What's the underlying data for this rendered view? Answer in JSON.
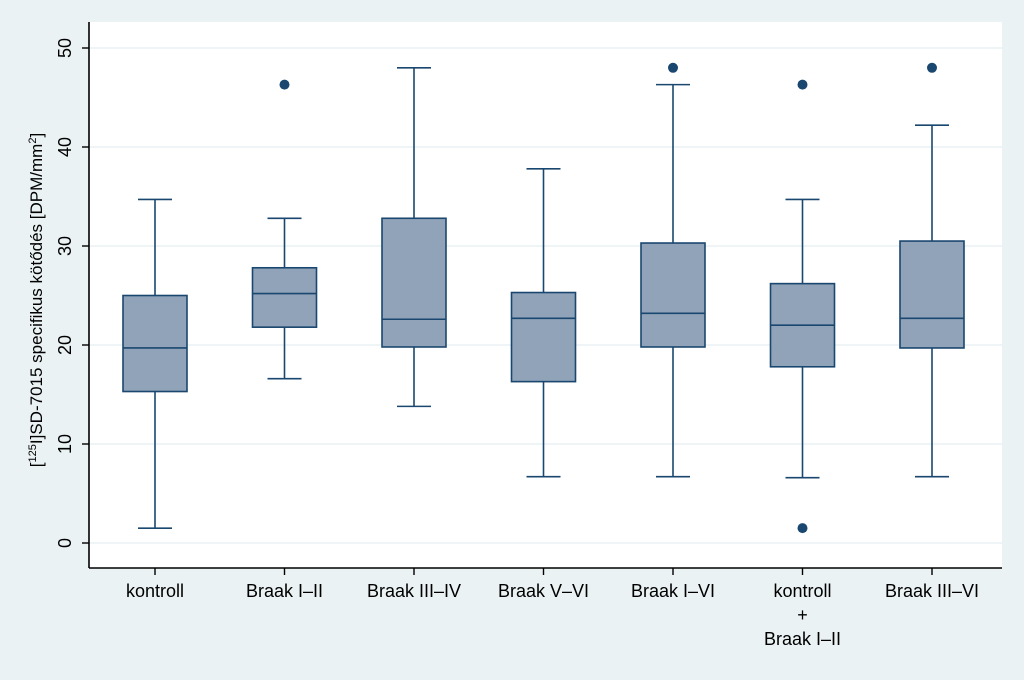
{
  "chart_data": {
    "type": "box",
    "title": "",
    "ylabel_parts": {
      "bracket_open": "[",
      "isotope": "125",
      "label_main": "I]SD-7015 specifikus kötődés [DPM/mm",
      "exponent": "2",
      "bracket_close": "]"
    },
    "ylim": [
      0,
      50
    ],
    "yticks": [
      0,
      10,
      20,
      30,
      40,
      50
    ],
    "grid": true,
    "categories": [
      [
        "kontroll"
      ],
      [
        "Braak I–II"
      ],
      [
        "Braak III–IV"
      ],
      [
        "Braak V–VI"
      ],
      [
        "Braak I–VI"
      ],
      [
        "kontroll",
        "+",
        "Braak I–II"
      ],
      [
        "Braak III–VI"
      ]
    ],
    "boxes": [
      {
        "whisker_low": 1.5,
        "q1": 15.3,
        "median": 19.7,
        "q3": 25.0,
        "whisker_high": 34.7,
        "outliers": []
      },
      {
        "whisker_low": 16.6,
        "q1": 21.8,
        "median": 25.2,
        "q3": 27.8,
        "whisker_high": 32.8,
        "outliers": [
          46.3
        ]
      },
      {
        "whisker_low": 13.8,
        "q1": 19.8,
        "median": 22.6,
        "q3": 32.8,
        "whisker_high": 48.0,
        "outliers": []
      },
      {
        "whisker_low": 6.7,
        "q1": 16.3,
        "median": 22.7,
        "q3": 25.3,
        "whisker_high": 37.8,
        "outliers": []
      },
      {
        "whisker_low": 6.7,
        "q1": 19.8,
        "median": 23.2,
        "q3": 30.3,
        "whisker_high": 46.3,
        "outliers": [
          48.0
        ]
      },
      {
        "whisker_low": 6.6,
        "q1": 17.8,
        "median": 22.0,
        "q3": 26.2,
        "whisker_high": 34.7,
        "outliers": [
          46.3,
          1.5
        ]
      },
      {
        "whisker_low": 6.7,
        "q1": 19.7,
        "median": 22.7,
        "q3": 30.5,
        "whisker_high": 42.2,
        "outliers": [
          48.0
        ]
      }
    ],
    "colors": {
      "box_fill": "#90a3b8",
      "line": "#1a476f",
      "outlier": "#1a476f",
      "plot_bg": "#ffffff",
      "outer_bg": "#eaf2f3",
      "grid": "#eaf2f3",
      "axis": "#000000"
    }
  }
}
